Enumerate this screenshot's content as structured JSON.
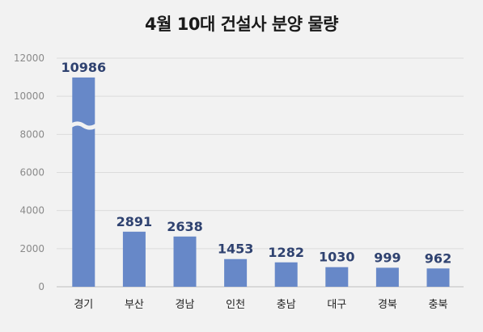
{
  "chart_data": {
    "type": "bar",
    "title": "4월 10대 건설사 분양 물량",
    "categories": [
      "경기",
      "부산",
      "경남",
      "인천",
      "충남",
      "대구",
      "경북",
      "충북"
    ],
    "values": [
      10986,
      2891,
      2638,
      1453,
      1282,
      1030,
      999,
      962
    ],
    "ylim": [
      0,
      12000
    ],
    "yticks": [
      "0",
      "2000",
      "4000",
      "6000",
      "8000",
      "10000",
      "12000"
    ],
    "grid": true,
    "axis_break_on_first_bar": true,
    "colors": {
      "bar": "#6788c8",
      "grid": "#dcdcdc",
      "label": "#2f4270",
      "background": "#f2f2f2"
    }
  }
}
